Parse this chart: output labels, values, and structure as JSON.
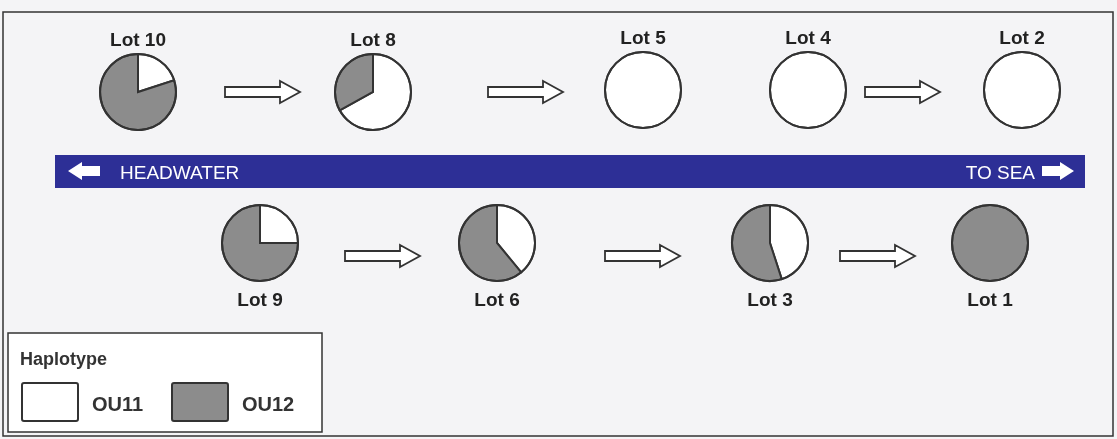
{
  "chart_data": [
    {
      "type": "pie",
      "title": "Lot 10",
      "categories": [
        "OU11",
        "OU12"
      ],
      "values": [
        20,
        80
      ],
      "colors": [
        "#ffffff",
        "#8c8c8c"
      ],
      "legend": "bottom",
      "legend_title": "Haplotype"
    },
    {
      "type": "pie",
      "title": "Lot 8",
      "categories": [
        null,
        null
      ],
      "values": [
        67,
        33
      ],
      "colors": [
        "#ffffff",
        "#8c8c8c"
      ]
    },
    {
      "type": "pie",
      "title": "Lot 5",
      "categories": [
        null,
        null
      ],
      "values": [
        100,
        0
      ],
      "colors": [
        "#ffffff",
        "#8c8c8c"
      ]
    },
    {
      "type": "pie",
      "title": "Lot 4",
      "categories": [
        null,
        null
      ],
      "values": [
        100,
        0
      ],
      "colors": [
        "#ffffff",
        "#8c8c8c"
      ]
    },
    {
      "type": "pie",
      "title": "Lot 2",
      "categories": [
        null,
        null
      ],
      "values": [
        100,
        0
      ],
      "colors": [
        "#ffffff",
        "#8c8c8c"
      ]
    },
    {
      "type": "pie",
      "title": "Lot 9",
      "categories": [
        null,
        null
      ],
      "values": [
        25,
        75
      ],
      "colors": [
        "#ffffff",
        "#8c8c8c"
      ]
    },
    {
      "type": "pie",
      "title": "Lot 6",
      "categories": [
        null,
        null
      ],
      "values": [
        39,
        61
      ],
      "colors": [
        "#ffffff",
        "#8c8c8c"
      ]
    },
    {
      "type": "pie",
      "title": "Lot 3",
      "categories": [
        null,
        null
      ],
      "values": [
        45,
        55
      ],
      "colors": [
        "#ffffff",
        "#8c8c8c"
      ]
    },
    {
      "type": "pie",
      "title": "Lot 1",
      "categories": [
        null,
        null
      ],
      "values": [
        0,
        100
      ],
      "colors": [
        "#ffffff",
        "#8c8c8c"
      ]
    },
    {
      "type": "other",
      "annotations": [
        "HEADWATER",
        "TO SEA"
      ]
    }
  ]
}
